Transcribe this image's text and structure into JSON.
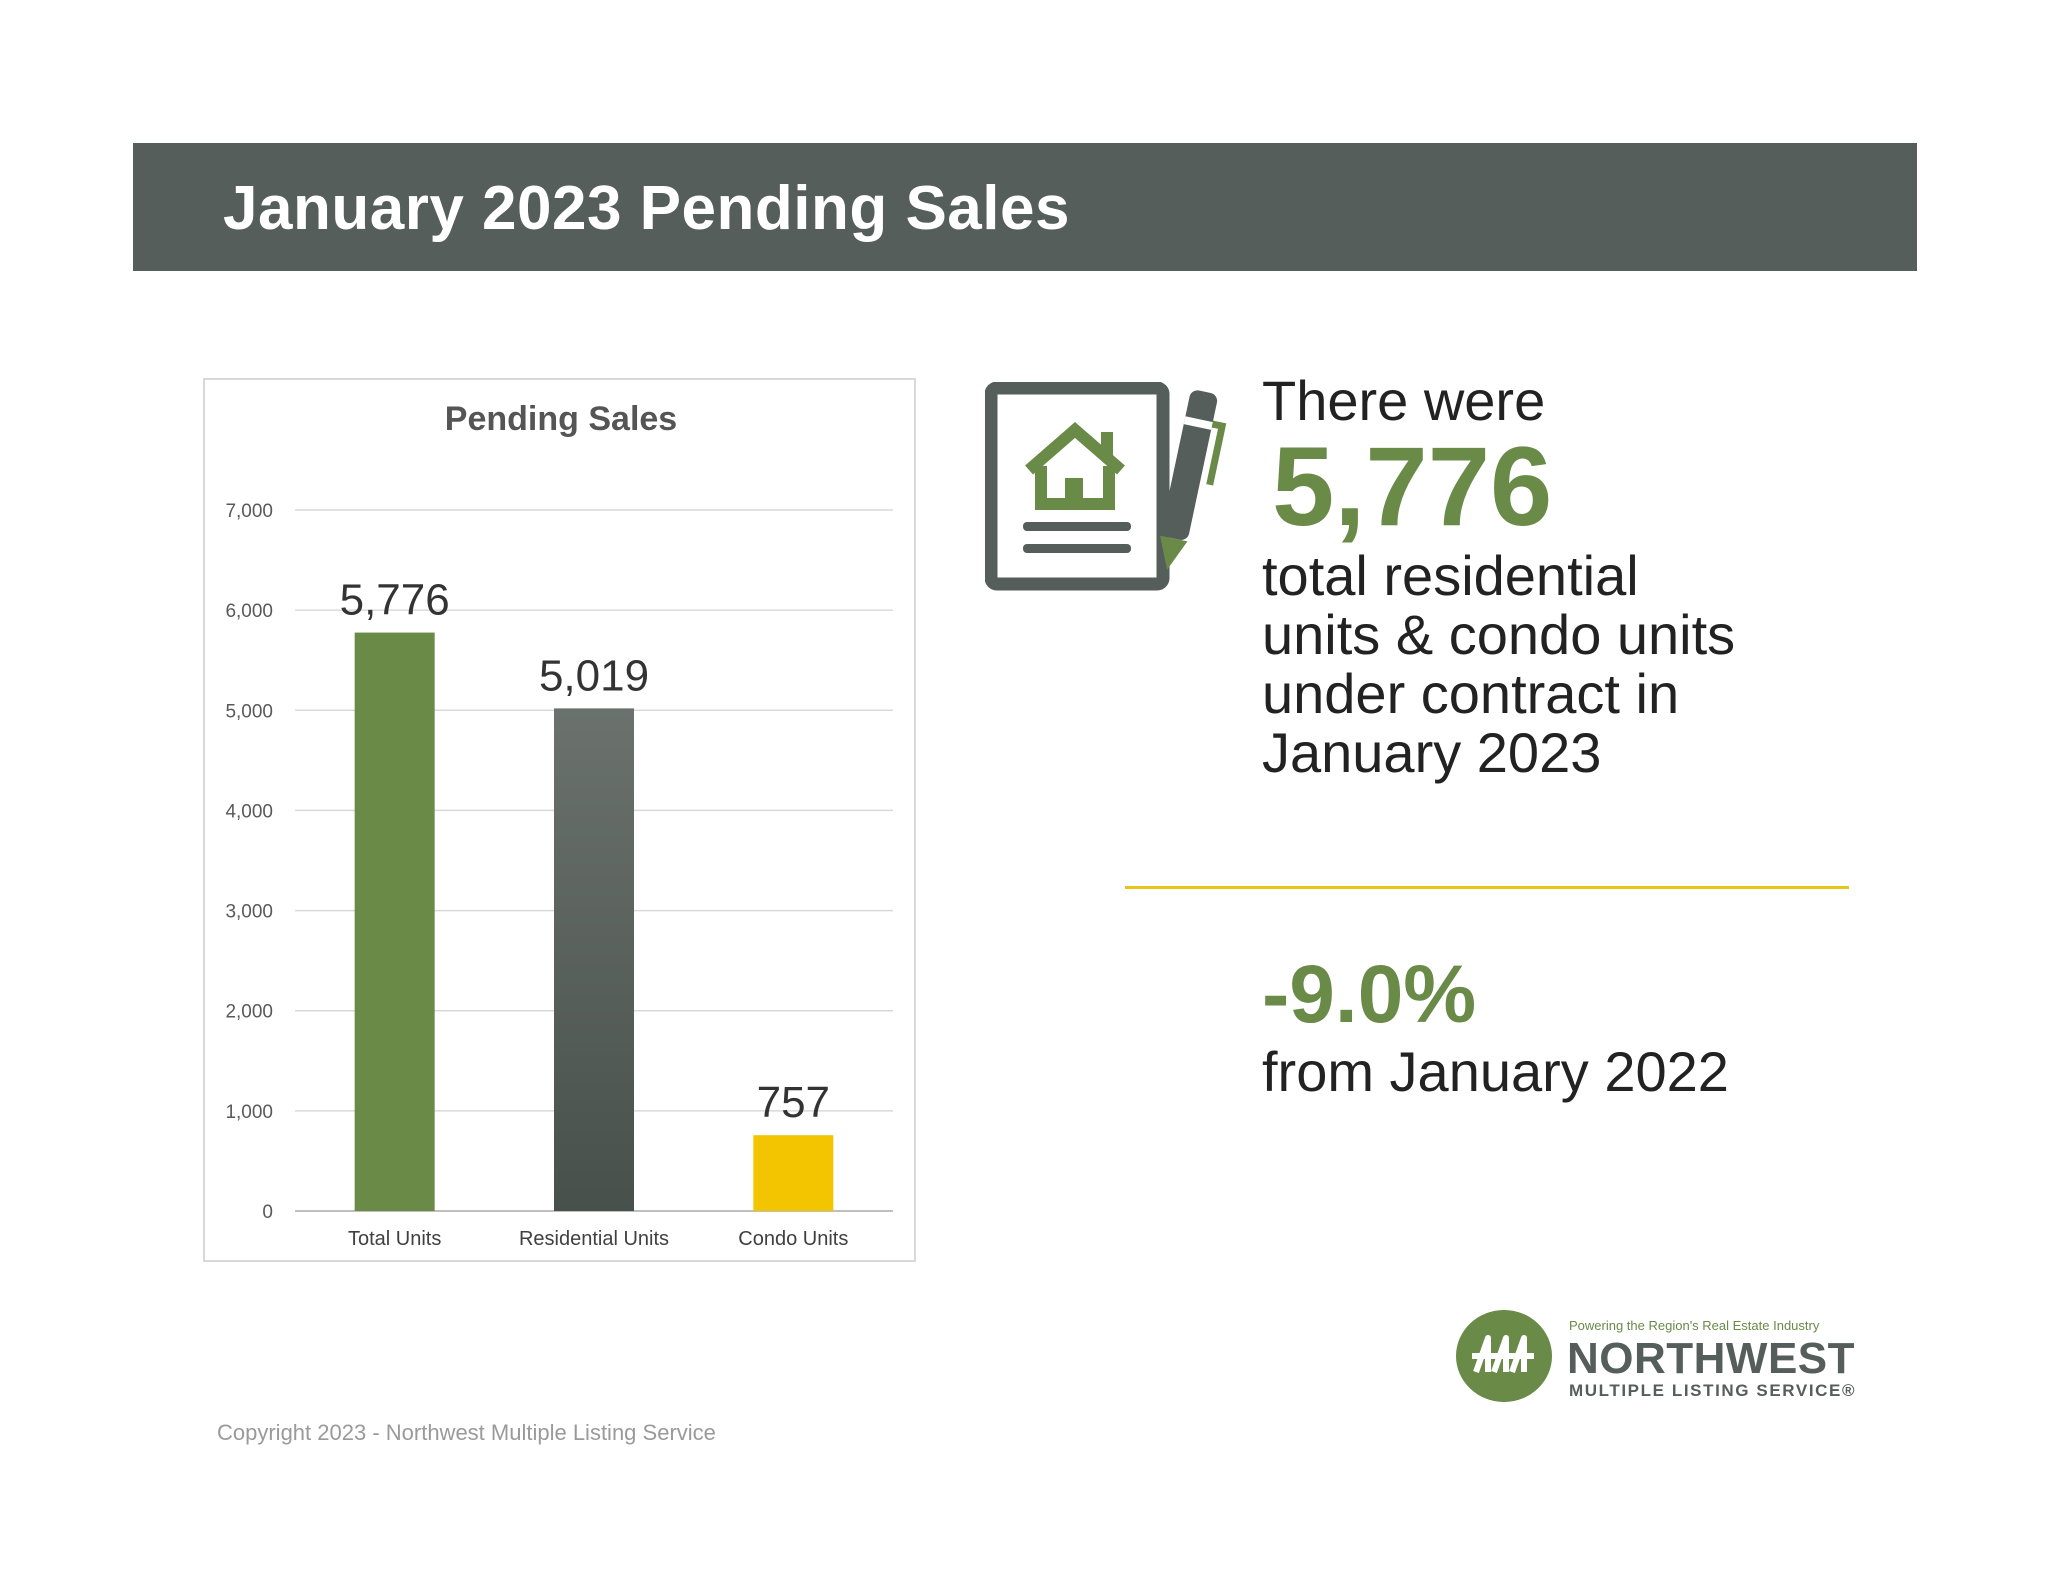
{
  "header": {
    "title": "January 2023 Pending Sales"
  },
  "chart_data": {
    "type": "bar",
    "title": "Pending Sales",
    "categories": [
      "Total Units",
      "Residential Units",
      "Condo Units"
    ],
    "values": [
      5776,
      5019,
      757
    ],
    "value_labels": [
      "5,776",
      "5,019",
      "757"
    ],
    "colors": [
      "#6a8a48",
      "#555e5a",
      "#f2c500"
    ],
    "ylim": [
      0,
      7000
    ],
    "yticks": [
      0,
      1000,
      2000,
      3000,
      4000,
      5000,
      6000,
      7000
    ],
    "ytick_labels": [
      "0",
      "1,000",
      "2,000",
      "3,000",
      "4,000",
      "5,000",
      "6,000",
      "7,000"
    ],
    "grid": true,
    "legend": "none"
  },
  "stat": {
    "intro": "There were",
    "value": "5,776",
    "description": "total residential\nunits & condo units\nunder contract in\nJanuary 2023"
  },
  "change": {
    "value": "-9.0%",
    "label": "from January 2022"
  },
  "logo": {
    "tagline": "Powering the Region's Real Estate Industry",
    "name": "NORTHWEST",
    "sub": "MULTIPLE LISTING SERVICE®"
  },
  "footer": {
    "copyright": "Copyright 2023 - Northwest Multiple Listing Service"
  },
  "icons": {
    "document": "house-document-icon",
    "pen": "pen-icon",
    "logo": "trees-logo-icon"
  }
}
